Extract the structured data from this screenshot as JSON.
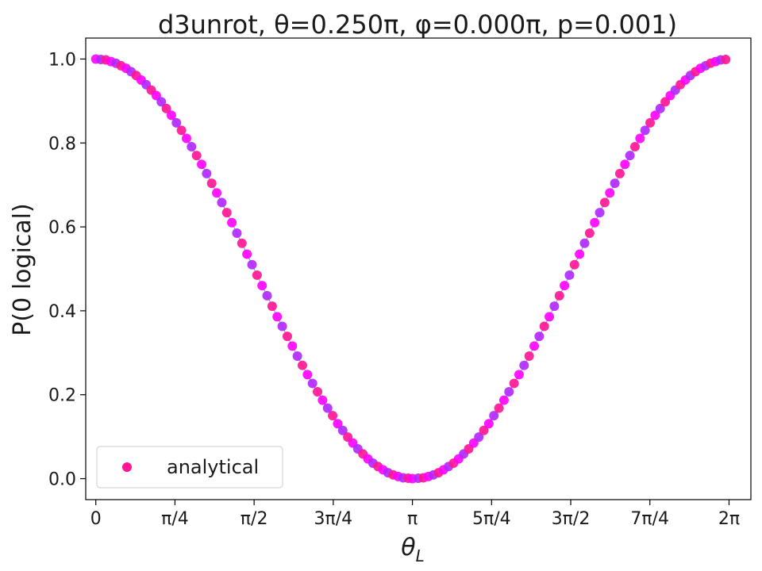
{
  "chart_data": {
    "type": "scatter",
    "title": "d3unrot, θ=0.250π, φ=0.000π, p=0.001)",
    "xlabel": "θ",
    "xlabel_sub": "L",
    "ylabel": "P(0 logical)",
    "xlim": [
      -0.1,
      6.5
    ],
    "ylim": [
      -0.05,
      1.05
    ],
    "xticks": [
      0,
      0.7853981634,
      1.5707963268,
      2.3561944902,
      3.1415926536,
      3.926990817,
      4.7123889804,
      5.4977871438,
      6.2831853072
    ],
    "xtick_labels": [
      "0",
      "π/4",
      "π/2",
      "3π/4",
      "π",
      "5π/4",
      "3π/2",
      "7π/4",
      "2π"
    ],
    "yticks": [
      0.0,
      0.2,
      0.4,
      0.6,
      0.8,
      1.0
    ],
    "ytick_labels": [
      "0.0",
      "0.2",
      "0.4",
      "0.6",
      "0.8",
      "1.0"
    ],
    "grid": false,
    "legend_position": "lower-left",
    "series": [
      {
        "name": "analytical",
        "marker_color": "#ff1493",
        "point_colors": [
          "#ff00ff",
          "#b026ff",
          "#ff1493"
        ],
        "x": [
          0.0,
          0.05,
          0.1,
          0.15,
          0.2,
          0.25,
          0.3,
          0.35,
          0.4,
          0.45,
          0.5,
          0.55,
          0.6,
          0.65,
          0.7,
          0.75,
          0.8,
          0.85,
          0.9,
          0.95,
          1.0,
          1.05,
          1.1,
          1.15,
          1.2,
          1.25,
          1.3,
          1.35,
          1.4,
          1.45,
          1.5,
          1.55,
          1.6,
          1.65,
          1.7,
          1.75,
          1.8,
          1.85,
          1.9,
          1.95,
          2.0,
          2.05,
          2.1,
          2.15,
          2.2,
          2.25,
          2.3,
          2.35,
          2.4,
          2.45,
          2.5,
          2.55,
          2.6,
          2.65,
          2.7,
          2.75,
          2.8,
          2.85,
          2.9,
          2.95,
          3.0,
          3.05,
          3.1,
          3.1416,
          3.2,
          3.25,
          3.3,
          3.35,
          3.4,
          3.45,
          3.5,
          3.55,
          3.6,
          3.65,
          3.7,
          3.75,
          3.8,
          3.85,
          3.9,
          3.95,
          4.0,
          4.05,
          4.1,
          4.15,
          4.2,
          4.25,
          4.3,
          4.35,
          4.4,
          4.45,
          4.5,
          4.55,
          4.6,
          4.65,
          4.7,
          4.75,
          4.8,
          4.85,
          4.9,
          4.95,
          5.0,
          5.05,
          5.1,
          5.15,
          5.2,
          5.25,
          5.3,
          5.35,
          5.4,
          5.45,
          5.5,
          5.55,
          5.6,
          5.65,
          5.7,
          5.75,
          5.8,
          5.85,
          5.9,
          5.95,
          6.0,
          6.05,
          6.1,
          6.15,
          6.2,
          6.25
        ],
        "y": [
          1.0,
          0.999,
          0.998,
          0.994,
          0.99,
          0.984,
          0.978,
          0.97,
          0.961,
          0.95,
          0.939,
          0.926,
          0.913,
          0.898,
          0.882,
          0.866,
          0.848,
          0.83,
          0.811,
          0.791,
          0.77,
          0.749,
          0.727,
          0.704,
          0.681,
          0.658,
          0.634,
          0.61,
          0.585,
          0.561,
          0.535,
          0.51,
          0.485,
          0.46,
          0.436,
          0.411,
          0.386,
          0.363,
          0.339,
          0.316,
          0.292,
          0.27,
          0.248,
          0.227,
          0.207,
          0.187,
          0.168,
          0.15,
          0.131,
          0.115,
          0.099,
          0.085,
          0.071,
          0.059,
          0.047,
          0.037,
          0.029,
          0.021,
          0.014,
          0.009,
          0.005,
          0.002,
          0.001,
          0.0,
          0.001,
          0.002,
          0.005,
          0.009,
          0.014,
          0.021,
          0.029,
          0.037,
          0.047,
          0.059,
          0.071,
          0.085,
          0.099,
          0.115,
          0.131,
          0.15,
          0.168,
          0.187,
          0.207,
          0.227,
          0.248,
          0.27,
          0.292,
          0.316,
          0.339,
          0.363,
          0.386,
          0.411,
          0.436,
          0.46,
          0.485,
          0.51,
          0.535,
          0.561,
          0.585,
          0.61,
          0.634,
          0.658,
          0.681,
          0.704,
          0.727,
          0.749,
          0.77,
          0.791,
          0.811,
          0.83,
          0.848,
          0.866,
          0.882,
          0.898,
          0.913,
          0.926,
          0.939,
          0.95,
          0.961,
          0.97,
          0.978,
          0.984,
          0.99,
          0.994,
          0.998,
          0.999
        ]
      }
    ]
  }
}
